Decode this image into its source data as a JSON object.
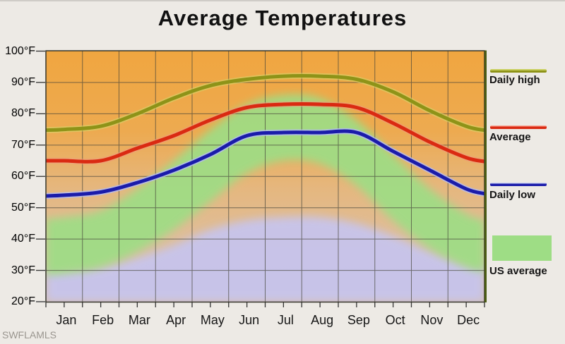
{
  "title": "Average Temperatures",
  "watermark": "SWFLAMLS",
  "legend": {
    "items": [
      {
        "label": "Daily high",
        "type": "line",
        "color": "#8e9318"
      },
      {
        "label": "Average",
        "type": "line",
        "color": "#da2a12"
      },
      {
        "label": "Daily low",
        "type": "line",
        "color": "#1b1caa"
      },
      {
        "label": "US average",
        "type": "area",
        "color": "#9edd85"
      }
    ]
  },
  "y_axis": {
    "unit": "°F",
    "labels": [
      "100°F",
      "90°F",
      "80°F",
      "70°F",
      "60°F",
      "50°F",
      "40°F",
      "30°F",
      "20°F"
    ]
  },
  "x_axis": {
    "labels": [
      "Jan",
      "Feb",
      "Mar",
      "Apr",
      "May",
      "Jun",
      "Jul",
      "Aug",
      "Sep",
      "Oct",
      "Nov",
      "Dec"
    ]
  },
  "chart_data": {
    "type": "line",
    "title": "Average Temperatures",
    "categories": [
      "Jan",
      "Feb",
      "Mar",
      "Apr",
      "May",
      "Jun",
      "Jul",
      "Aug",
      "Sep",
      "Oct",
      "Nov",
      "Dec"
    ],
    "y_unit": "°F",
    "ylim": [
      20,
      100
    ],
    "grid": true,
    "legend_position": "right",
    "series": [
      {
        "name": "Daily high",
        "color": "#8e9318",
        "values": [
          75,
          76,
          80,
          85,
          89,
          91,
          92,
          92,
          91,
          87,
          81,
          76
        ]
      },
      {
        "name": "Average",
        "color": "#da2a12",
        "values": [
          65,
          65,
          69,
          73,
          78,
          82,
          83,
          83,
          82,
          77,
          71,
          66
        ]
      },
      {
        "name": "Daily low",
        "color": "#1b1caa",
        "values": [
          54,
          55,
          58,
          62,
          67,
          73,
          74,
          74,
          74,
          68,
          62,
          56
        ]
      }
    ],
    "bands": [
      {
        "name": "US average",
        "color": "#9edd85",
        "high": [
          47,
          49,
          56,
          65,
          75,
          83,
          86,
          85,
          78,
          67,
          56,
          48
        ],
        "low": [
          29,
          31,
          36,
          43,
          52,
          61,
          65,
          64,
          57,
          46,
          37,
          31
        ]
      }
    ],
    "background_fills": [
      {
        "name": "lower-lavender",
        "color": "#c7c4ec",
        "top": [
          30,
          31,
          34,
          38,
          43,
          46,
          47,
          47,
          45,
          41,
          36,
          32
        ]
      }
    ]
  },
  "colors": {
    "background": "#edeae5",
    "plot_gradient_top": "#f0a640",
    "plot_gradient_bottom": "#d7c0ac",
    "grid": "#45443a",
    "border": "#35342a",
    "right_border": "#4b5b13",
    "title": "#111111",
    "watermark": "#9a968f"
  }
}
